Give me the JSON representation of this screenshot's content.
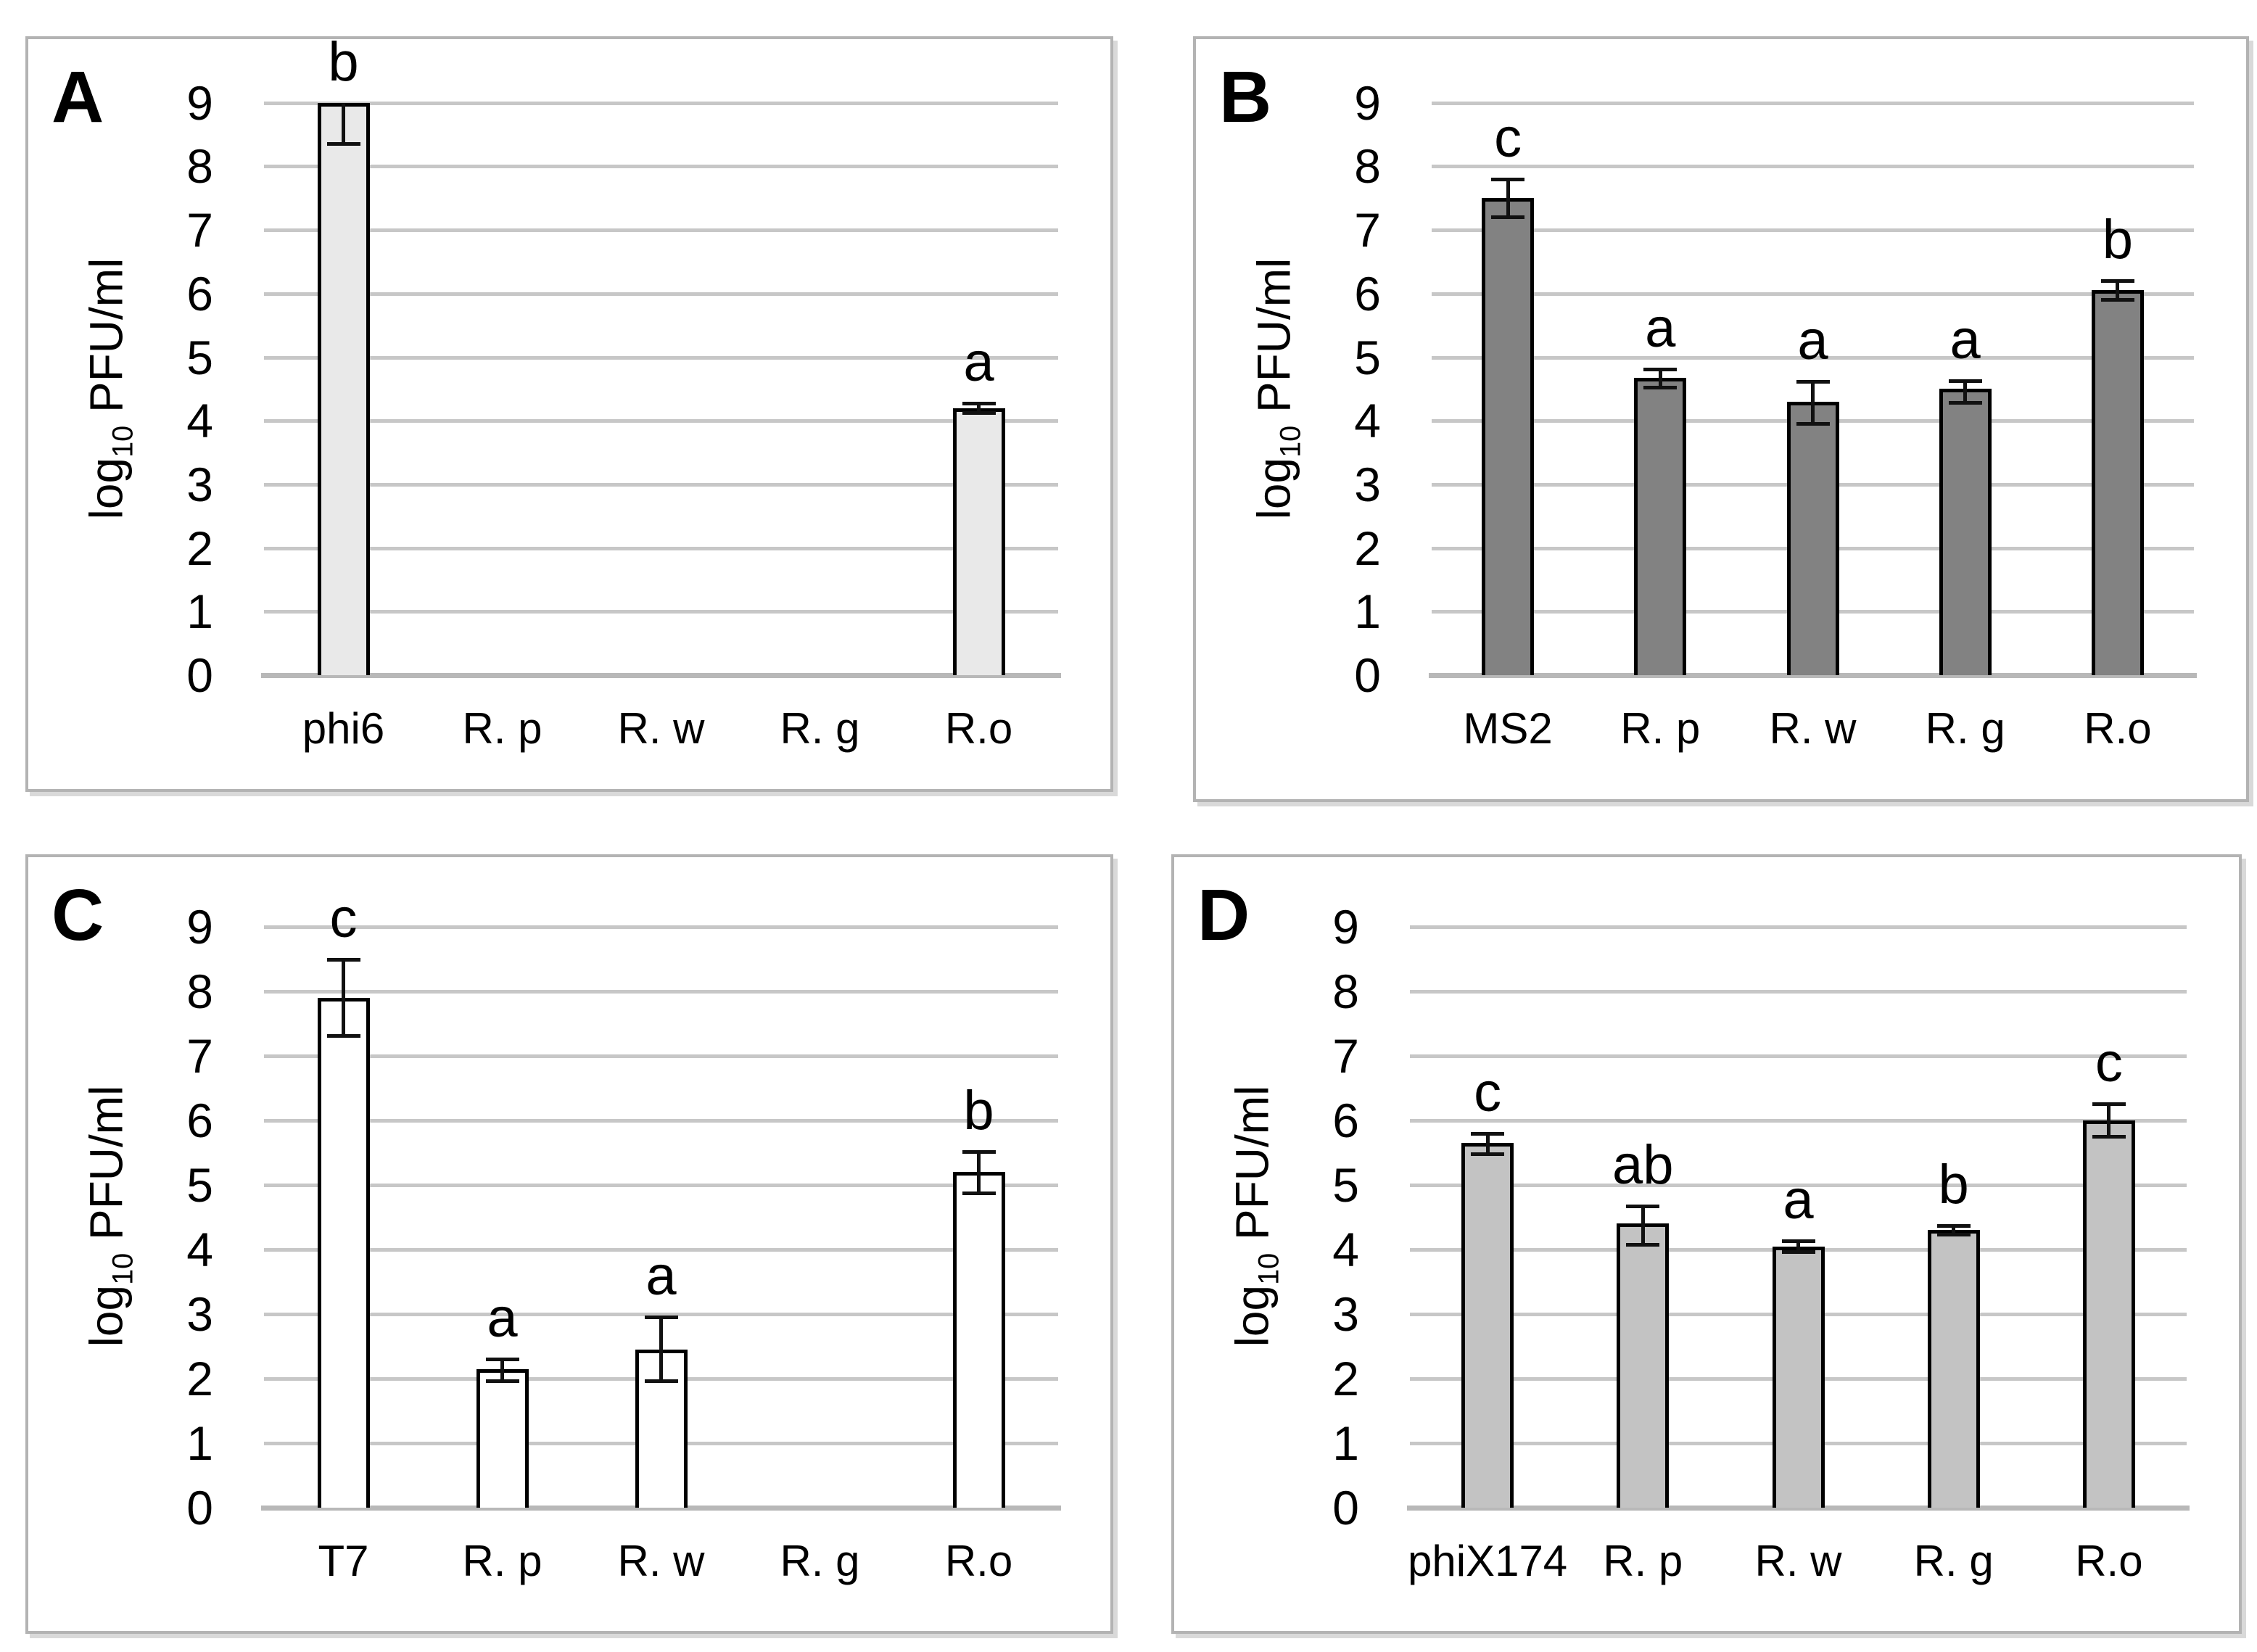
{
  "colors": {
    "grid": "#c7c7c7",
    "axis": "#b8b8b8",
    "bar_outline": "#000000",
    "error_bar": "#111111",
    "frame": "#b3b3b3",
    "text": "#000000"
  },
  "chart_data": [
    {
      "panel": "A",
      "type": "bar",
      "ylabel": "log10 PFU/ml",
      "ylabel_parts": [
        "log",
        "10",
        " PFU/ml"
      ],
      "categories": [
        "phi6",
        "R. p",
        "R. w",
        "R. g",
        "R.o"
      ],
      "values": [
        9.0,
        null,
        null,
        null,
        4.2
      ],
      "errors_up": [
        0,
        null,
        null,
        null,
        0.08
      ],
      "errors_down": [
        0.65,
        null,
        null,
        null,
        0.08
      ],
      "sig_letters": [
        "b",
        "",
        "",
        "",
        "a"
      ],
      "bar_color": "#e9e9e9",
      "yticks": [
        0,
        1,
        2,
        3,
        4,
        5,
        6,
        7,
        8,
        9
      ],
      "ylim": [
        0,
        9.6
      ],
      "grid": true,
      "legend": "none"
    },
    {
      "panel": "B",
      "type": "bar",
      "ylabel": "log10 PFU/ml",
      "ylabel_parts": [
        "log",
        "10",
        " PFU/ml"
      ],
      "categories": [
        "MS2",
        "R. p",
        "R. w",
        "R. g",
        "R.o"
      ],
      "values": [
        7.5,
        4.68,
        4.3,
        4.5,
        6.05
      ],
      "errors_up": [
        0.3,
        0.13,
        0.32,
        0.13,
        0.15
      ],
      "errors_down": [
        0.3,
        0.16,
        0.35,
        0.22,
        0.15
      ],
      "sig_letters": [
        "c",
        "a",
        "a",
        "a",
        "b"
      ],
      "bar_color": "#828282",
      "yticks": [
        0,
        1,
        2,
        3,
        4,
        5,
        6,
        7,
        8,
        9
      ],
      "ylim": [
        0,
        9.6
      ],
      "grid": true,
      "legend": "none"
    },
    {
      "panel": "C",
      "type": "bar",
      "ylabel": "log10 PFU/ml",
      "ylabel_parts": [
        "log",
        "10",
        " PFU/ml"
      ],
      "categories": [
        "T7",
        "R. p",
        "R. w",
        "R. g",
        "R.o"
      ],
      "values": [
        7.9,
        2.15,
        2.45,
        null,
        5.2
      ],
      "errors_up": [
        0.6,
        0.15,
        0.5,
        null,
        0.32
      ],
      "errors_down": [
        0.6,
        0.2,
        0.5,
        null,
        0.33
      ],
      "sig_letters": [
        "c",
        "a",
        "a",
        "",
        "b"
      ],
      "bar_color": "#ffffff",
      "yticks": [
        0,
        1,
        2,
        3,
        4,
        5,
        6,
        7,
        8,
        9
      ],
      "ylim": [
        0,
        9.6
      ],
      "grid": true,
      "legend": "none"
    },
    {
      "panel": "D",
      "type": "bar",
      "ylabel": "log10 PFU/ml",
      "ylabel_parts": [
        "log",
        "10",
        " PFU/ml"
      ],
      "categories": [
        "phiX174",
        "R. p",
        "R. w",
        "R. g",
        "R.o"
      ],
      "values": [
        5.65,
        4.4,
        4.05,
        4.3,
        6.0
      ],
      "errors_up": [
        0.15,
        0.27,
        0.08,
        0.07,
        0.26
      ],
      "errors_down": [
        0.18,
        0.33,
        0.1,
        0.07,
        0.26
      ],
      "sig_letters": [
        "c",
        "ab",
        "a",
        "b",
        "c"
      ],
      "bar_color": "#c3c3c3",
      "yticks": [
        0,
        1,
        2,
        3,
        4,
        5,
        6,
        7,
        8,
        9
      ],
      "ylim": [
        0,
        9.6
      ],
      "grid": true,
      "legend": "none"
    }
  ]
}
